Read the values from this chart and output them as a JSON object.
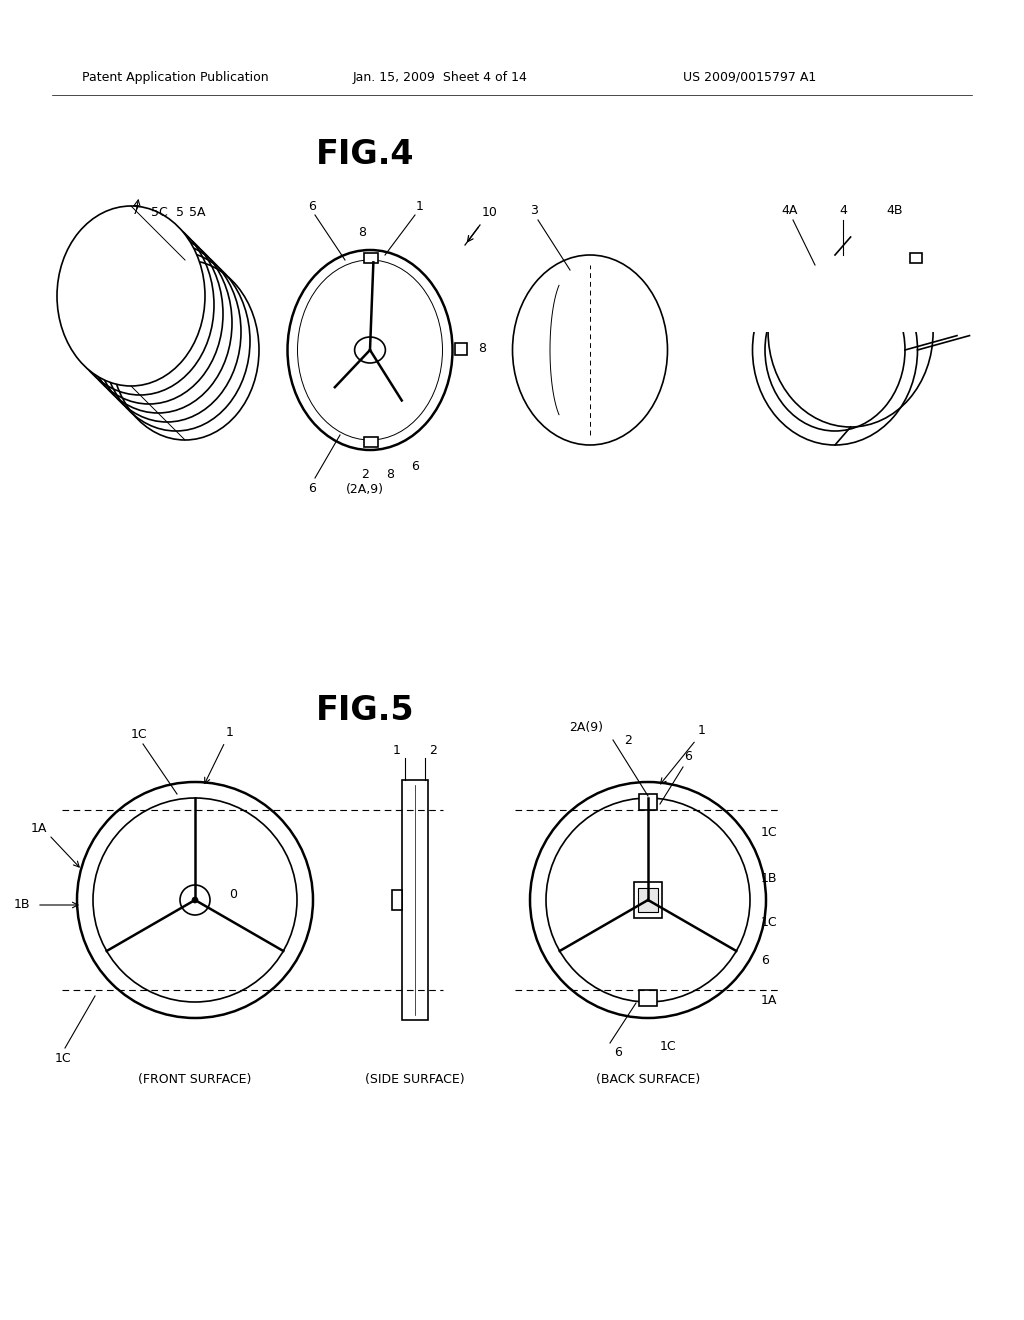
{
  "bg_color": "#ffffff",
  "text_color": "#000000",
  "line_color": "#000000",
  "header_left": "Patent Application Publication",
  "header_mid": "Jan. 15, 2009  Sheet 4 of 14",
  "header_right": "US 2009/0015797 A1",
  "fig4_title": "FIG.4",
  "fig5_title": "FIG.5",
  "lw": 1.2,
  "lw_thin": 0.7,
  "lw_thick": 1.8
}
